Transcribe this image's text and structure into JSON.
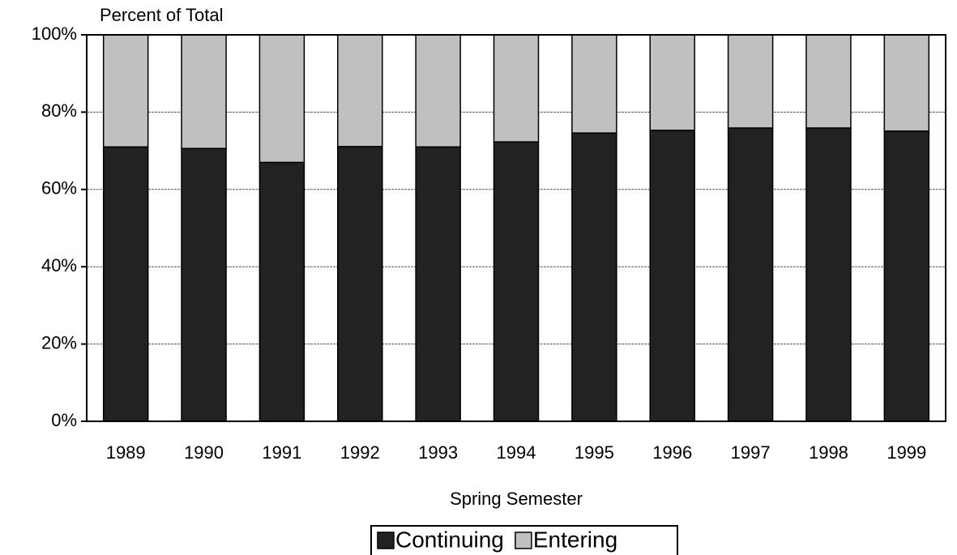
{
  "chart_data": {
    "type": "stacked_bar",
    "y_axis_label": "Percent of Total",
    "x_axis_label": "Spring Semester",
    "categories": [
      "1989",
      "1990",
      "1991",
      "1992",
      "1993",
      "1994",
      "1995",
      "1996",
      "1997",
      "1998",
      "1999"
    ],
    "series": [
      {
        "name": "Continuing",
        "color": "#222222",
        "values": [
          71,
          70.6,
          67,
          71.1,
          71,
          72.3,
          74.6,
          75.3,
          75.9,
          75.9,
          75.1
        ]
      },
      {
        "name": "Entering",
        "color": "#c0c0c0",
        "values": [
          29,
          29.4,
          33,
          28.9,
          29,
          27.7,
          25.4,
          24.7,
          24.1,
          24.1,
          24.9
        ]
      }
    ],
    "ylim": [
      0,
      100
    ],
    "yticks": [
      {
        "value": 0,
        "label": "0%"
      },
      {
        "value": 20,
        "label": "20%"
      },
      {
        "value": 40,
        "label": "40%"
      },
      {
        "value": 60,
        "label": "60%"
      },
      {
        "value": 80,
        "label": "80%"
      },
      {
        "value": 100,
        "label": "100%"
      }
    ],
    "grid": true,
    "legend": "bottom"
  }
}
